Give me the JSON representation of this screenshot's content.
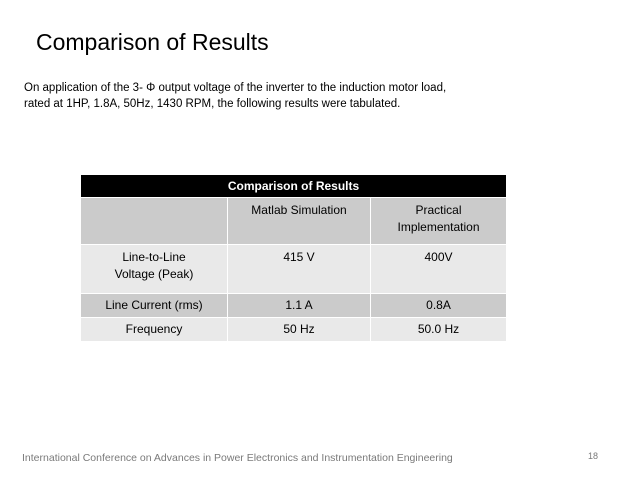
{
  "slide": {
    "title": "Comparison of Results",
    "intro_line1": "On application of the 3- Φ output voltage of the inverter to the induction motor load,",
    "intro_line2": "rated at 1HP, 1.8A, 50Hz, 1430 RPM, the following results were tabulated."
  },
  "table": {
    "caption": "Comparison of Results",
    "header": {
      "blank": "",
      "col1": "Matlab Simulation",
      "col2_line1": "Practical",
      "col2_line2": "Implementation"
    },
    "rows": [
      {
        "label_line1": "Line-to-Line",
        "label_line2": "Voltage (Peak)",
        "matlab": "415 V",
        "practical": "400V"
      },
      {
        "label_line1": "Line Current (rms)",
        "label_line2": "",
        "matlab": "1.1 A",
        "practical": "0.8A"
      },
      {
        "label_line1": "Frequency",
        "label_line2": "",
        "matlab": "50 Hz",
        "practical": "50.0 Hz"
      }
    ]
  },
  "footer": {
    "conference": "International Conference  on Advances in Power Electronics and Instrumentation Engineering",
    "page_number": "18"
  }
}
